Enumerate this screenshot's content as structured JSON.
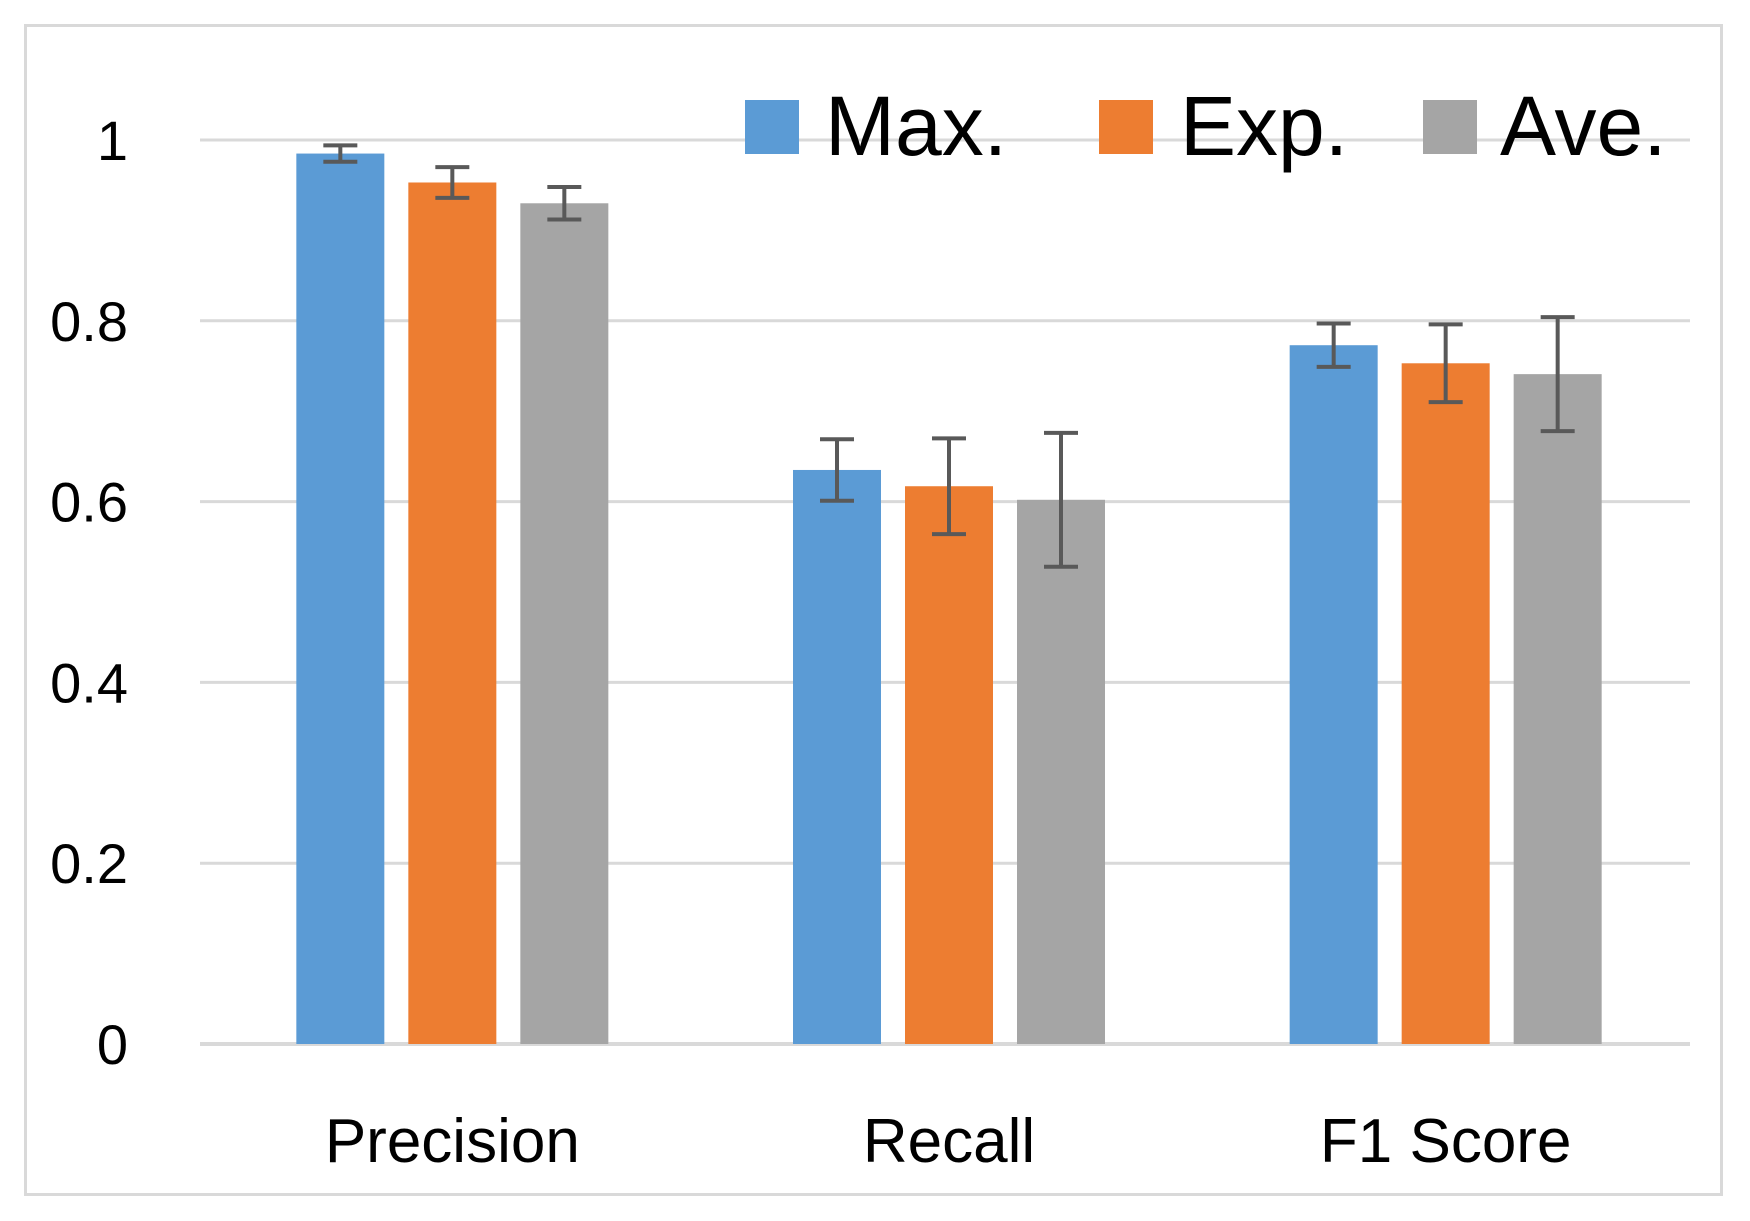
{
  "chart_data": {
    "type": "bar",
    "title": "",
    "xlabel": "",
    "ylabel": "",
    "ylim": [
      0,
      1
    ],
    "yticks": [
      0,
      0.2,
      0.4,
      0.6,
      0.8,
      1
    ],
    "ytick_labels": [
      "0",
      "0.2",
      "0.4",
      "0.6",
      "0.8",
      "1"
    ],
    "grid": true,
    "legend_position": "top-right",
    "categories": [
      "Precision",
      "Recall",
      "F1 Score"
    ],
    "series": [
      {
        "name": "Max.",
        "color": "#5b9bd5",
        "values": [
          0.985,
          0.635,
          0.773
        ],
        "error": [
          0.009,
          0.034,
          0.024
        ]
      },
      {
        "name": "Exp.",
        "color": "#ed7d31",
        "values": [
          0.953,
          0.617,
          0.753
        ],
        "error": [
          0.017,
          0.053,
          0.043
        ]
      },
      {
        "name": "Ave.",
        "color": "#a5a5a5",
        "values": [
          0.93,
          0.602,
          0.741
        ],
        "error": [
          0.018,
          0.074,
          0.063
        ]
      }
    ],
    "error_bar_color": "#595959",
    "gridline_color": "#d9d9d9"
  }
}
